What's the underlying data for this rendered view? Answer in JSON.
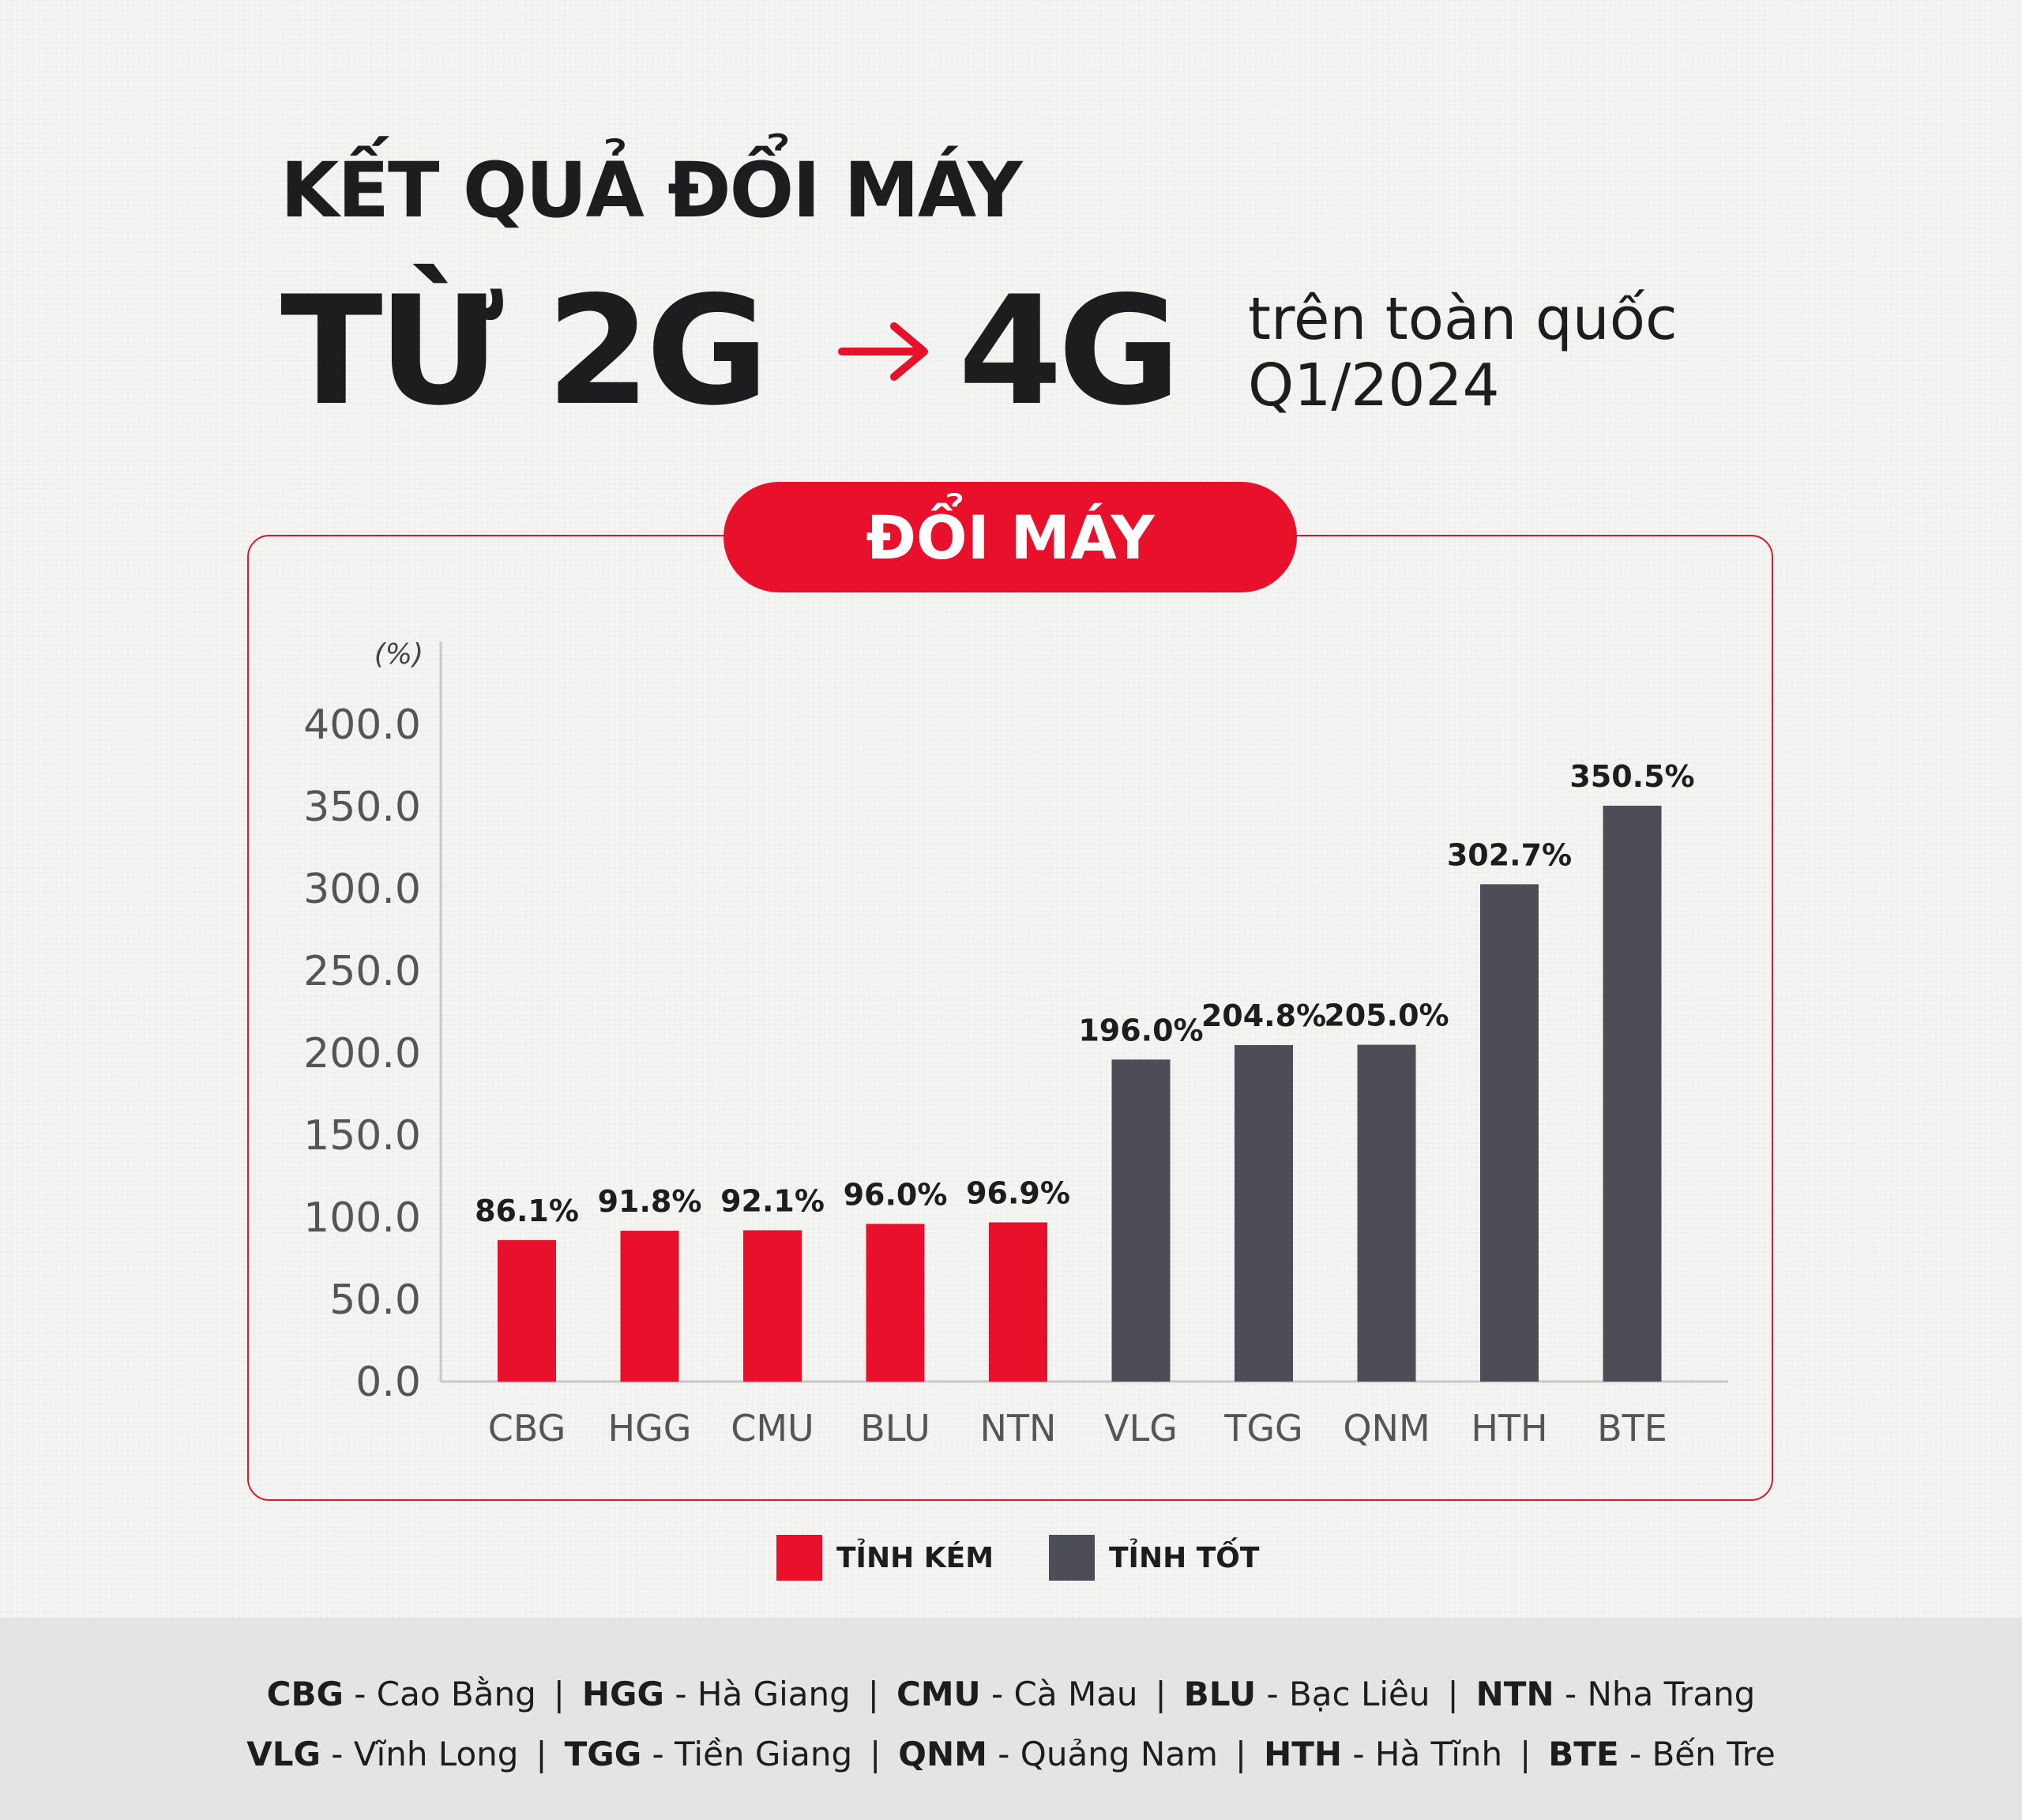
{
  "title": {
    "line1": "KẾT QUẢ ĐỔI MÁY",
    "line2_left": "TỪ 2G",
    "line2_right": "4G",
    "subtitle_line1": "trên toàn quốc",
    "subtitle_line2": "Q1/2024"
  },
  "badge": {
    "label": "ĐỔI MÁY"
  },
  "colors": {
    "accent": "#e8102b",
    "dark": "#4d4d57",
    "frame": "#d71a2c"
  },
  "chart_data": {
    "type": "bar",
    "ylabel": "(%)",
    "ylim": [
      0,
      400
    ],
    "ytick_labels": [
      "0.0",
      "50.0",
      "100.0",
      "150.0",
      "200.0",
      "250.0",
      "300.0",
      "350.0",
      "400.0"
    ],
    "categories": [
      "CBG",
      "HGG",
      "CMU",
      "BLU",
      "NTN",
      "VLG",
      "TGG",
      "QNM",
      "HTH",
      "BTE"
    ],
    "values": [
      86.1,
      91.8,
      92.1,
      96.0,
      96.9,
      196.0,
      204.8,
      205.0,
      302.7,
      350.5
    ],
    "value_labels": [
      "86.1%",
      "91.8%",
      "92.1%",
      "96.0%",
      "96.9%",
      "196.0%",
      "204.8%",
      "205.0%",
      "302.7%",
      "350.5%"
    ],
    "groups": [
      "weak",
      "weak",
      "weak",
      "weak",
      "weak",
      "good",
      "good",
      "good",
      "good",
      "good"
    ],
    "grid": false
  },
  "legend": [
    {
      "key": "weak",
      "label": "TỈNH KÉM",
      "color": "#e8102b"
    },
    {
      "key": "good",
      "label": "TỈNH TỐT",
      "color": "#4d4d57"
    }
  ],
  "footer": {
    "row1": [
      {
        "code": "CBG",
        "name": "Cao Bằng"
      },
      {
        "code": "HGG",
        "name": "Hà Giang"
      },
      {
        "code": "CMU",
        "name": "Cà Mau"
      },
      {
        "code": "BLU",
        "name": "Bạc Liêu"
      },
      {
        "code": "NTN",
        "name": "Nha Trang"
      }
    ],
    "row2": [
      {
        "code": "VLG",
        "name": "Vĩnh Long"
      },
      {
        "code": "TGG",
        "name": "Tiền Giang"
      },
      {
        "code": "QNM",
        "name": "Quảng Nam"
      },
      {
        "code": "HTH",
        "name": "Hà Tĩnh"
      },
      {
        "code": "BTE",
        "name": "Bến Tre"
      }
    ]
  }
}
